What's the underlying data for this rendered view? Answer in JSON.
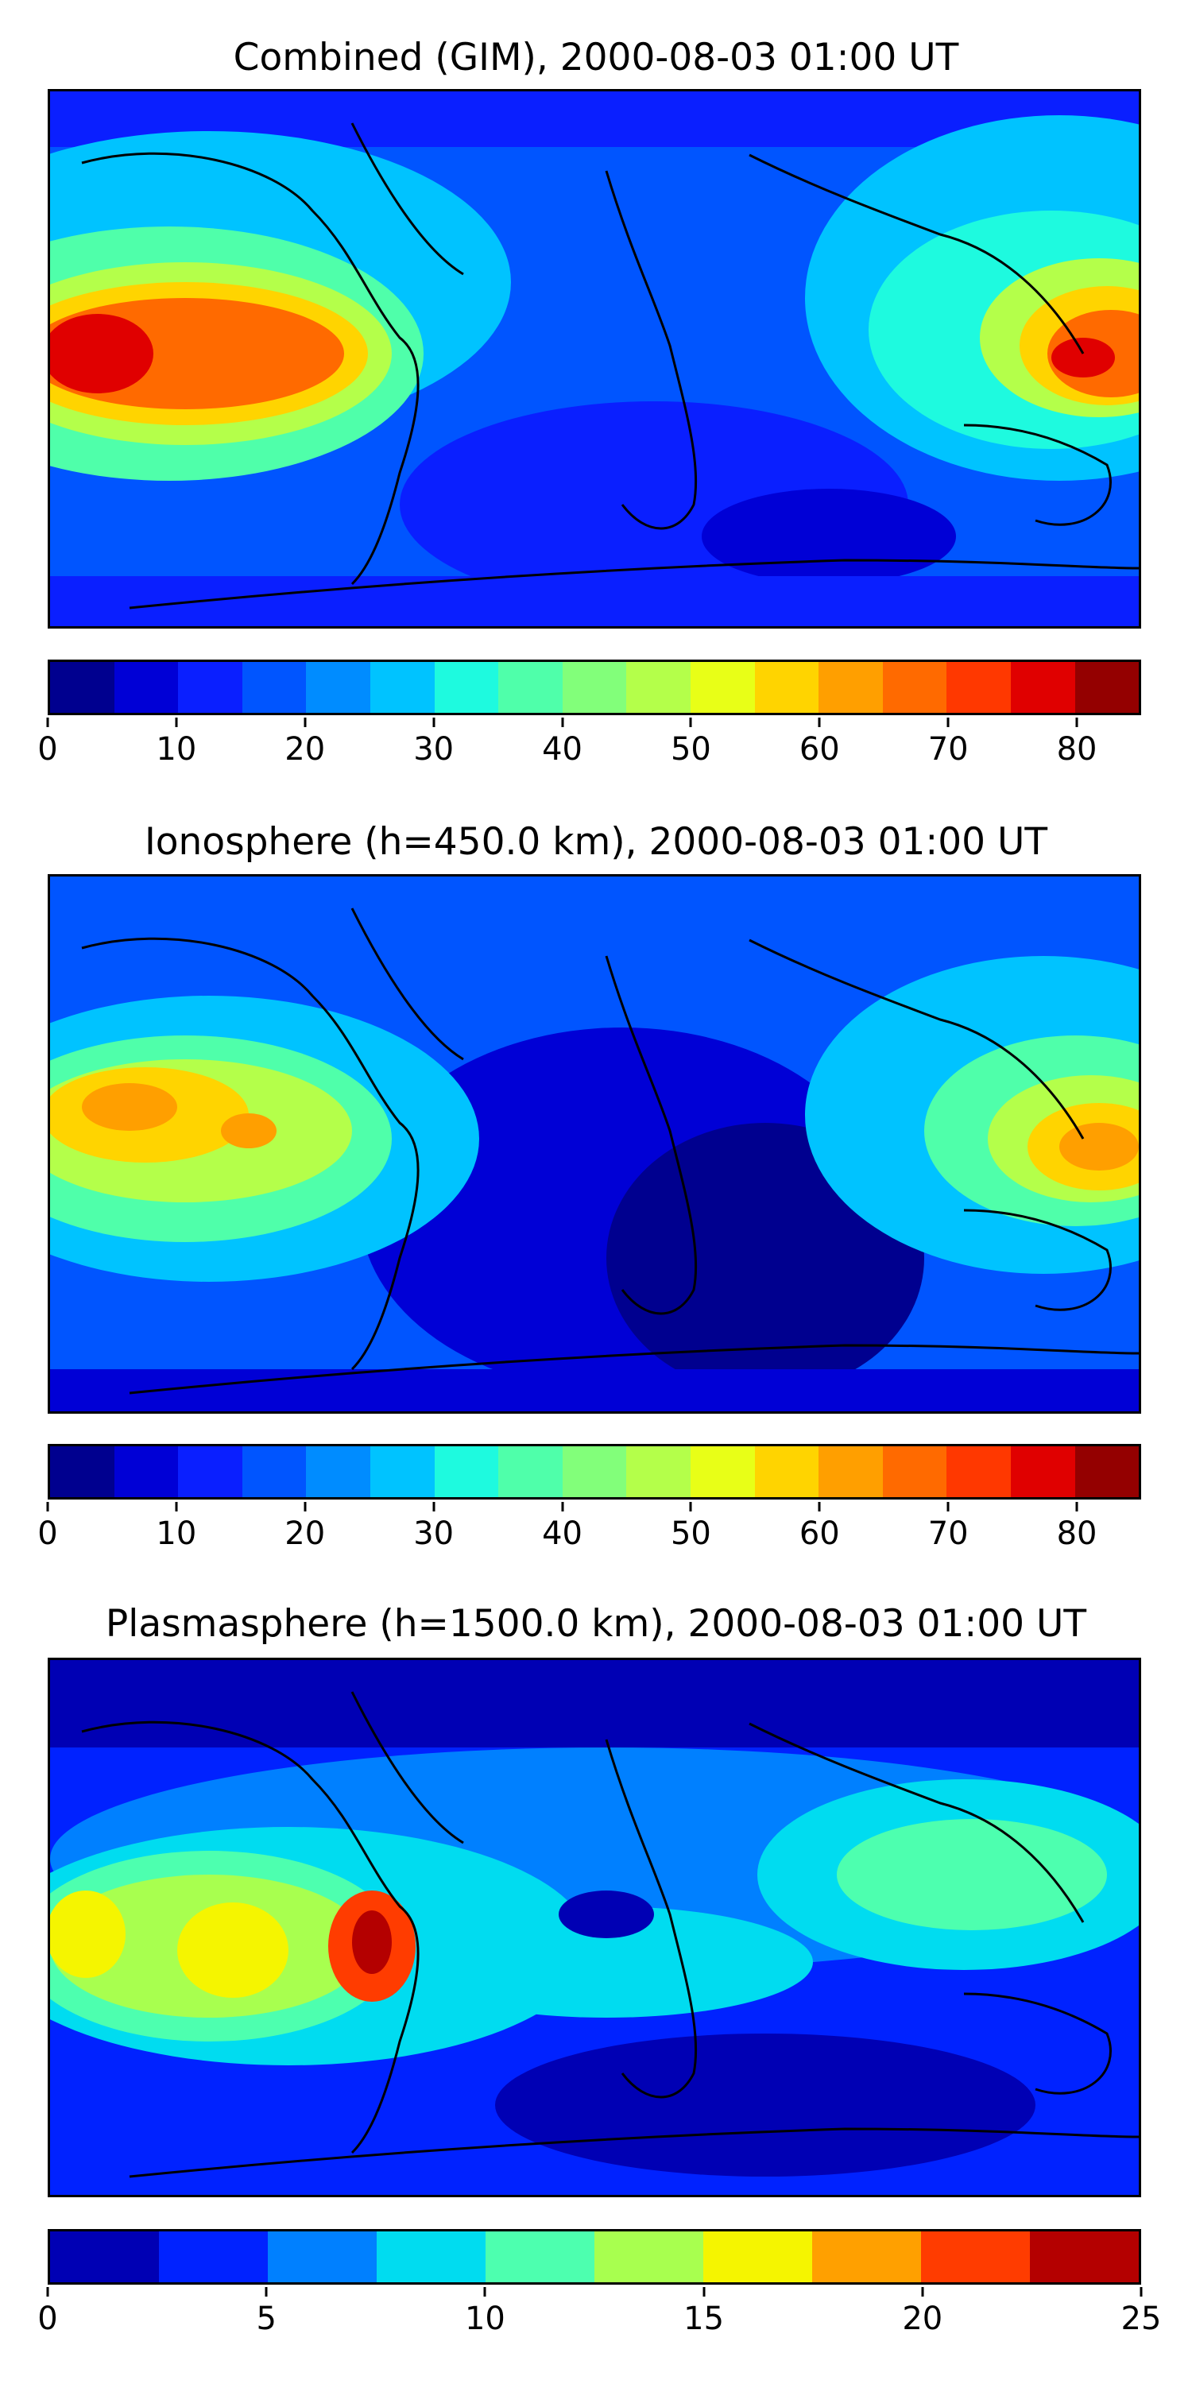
{
  "panels": [
    {
      "title": "Combined (GIM), 2000-08-03 01:00 UT",
      "colorbar": {
        "min": 0,
        "max": 85,
        "step": 5,
        "ticks": [
          "0",
          "10",
          "20",
          "30",
          "40",
          "50",
          "60",
          "70",
          "80"
        ],
        "colors": [
          "#00008f",
          "#0000d6",
          "#0a1fff",
          "#0055ff",
          "#008cff",
          "#00c3ff",
          "#1efadf",
          "#4fffaa",
          "#82ff7a",
          "#b4ff4a",
          "#e8ff17",
          "#ffd400",
          "#ff9f00",
          "#ff6a00",
          "#ff3800",
          "#e00000",
          "#940000"
        ]
      }
    },
    {
      "title": "Ionosphere  (h=450.0 km), 2000-08-03 01:00 UT",
      "colorbar": {
        "min": 0,
        "max": 85,
        "step": 5,
        "ticks": [
          "0",
          "10",
          "20",
          "30",
          "40",
          "50",
          "60",
          "70",
          "80"
        ],
        "colors": [
          "#00008f",
          "#0000d6",
          "#0a1fff",
          "#0055ff",
          "#008cff",
          "#00c3ff",
          "#1efadf",
          "#4fffaa",
          "#82ff7a",
          "#b4ff4a",
          "#e8ff17",
          "#ffd400",
          "#ff9f00",
          "#ff6a00",
          "#ff3800",
          "#e00000",
          "#940000"
        ]
      }
    },
    {
      "title": "Plasmasphere (h=1500.0 km), 2000-08-03 01:00 UT",
      "colorbar": {
        "min": 0,
        "max": 25,
        "step": 2.5,
        "ticks": [
          "0",
          "5",
          "10",
          "15",
          "20",
          "25"
        ],
        "colors": [
          "#0000b4",
          "#0022ff",
          "#0080ff",
          "#00dcf0",
          "#4dffaf",
          "#a8ff4f",
          "#f5f500",
          "#ffa000",
          "#ff3c00",
          "#b40000"
        ]
      }
    }
  ]
}
